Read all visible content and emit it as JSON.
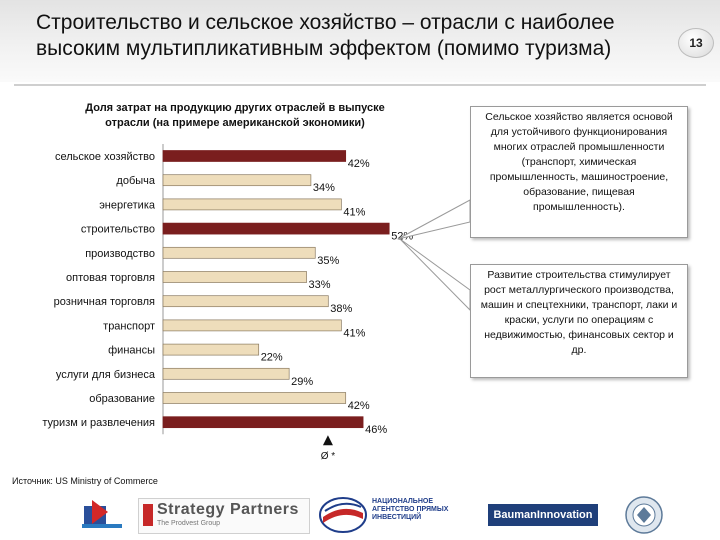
{
  "slide": {
    "title_line1": "Строительство и сельское хозяйство – отрасли с наиболее",
    "title_line2": "высоким мультипликативным эффектом (помимо туризма)",
    "page_number": "13"
  },
  "chart_data": {
    "type": "bar",
    "orientation": "horizontal",
    "title_line1": "Доля затрат на продукцию других отраслей в выпуске",
    "title_line2": "отрасли (на примере американской экономики)",
    "categories": [
      "сельское хозяйство",
      "добыча",
      "энергетика",
      "строительство",
      "производство",
      "оптовая торговля",
      "розничная торговля",
      "транспорт",
      "финансы",
      "услуги для бизнеса",
      "образование",
      "туризм и развлечения"
    ],
    "values": [
      42,
      34,
      41,
      52,
      35,
      33,
      38,
      41,
      22,
      29,
      42,
      46
    ],
    "value_labels": [
      "42%",
      "34%",
      "41%",
      "52%",
      "35%",
      "33%",
      "38%",
      "41%",
      "22%",
      "29%",
      "42%",
      "46%"
    ],
    "highlighted_categories": [
      "сельское хозяйство",
      "строительство",
      "туризм и развлечения"
    ],
    "average_marker_label": "Ø *",
    "colors": {
      "bar": "#eeddbb",
      "highlight": "#7a1e1e",
      "bar_outline": "#8a7a60"
    }
  },
  "callouts": {
    "agriculture": "Сельское хозяйство является основой для устойчивого функционирования многих отраслей промышленности (транспорт, химическая промышленность, машиностроение, образование, пищевая промышленность).",
    "construction": "Развитие строительства стимулирует рост металлургического производства, машин и спецтехники, транспорт, лаки и краски, услуги по операциям с недвижимостью, финансовых сектор и др."
  },
  "source": "Источник: US Ministry of Commerce",
  "logos": {
    "strategy_partners": "Strategy Partners",
    "strategy_partners_sub": "The Prodvest Group",
    "agency": "НАЦИОНАЛЬНОЕ АГЕНТСТВО ПРЯМЫХ ИНВЕСТИЦИЙ",
    "bauman": "BaumanInnovation"
  }
}
